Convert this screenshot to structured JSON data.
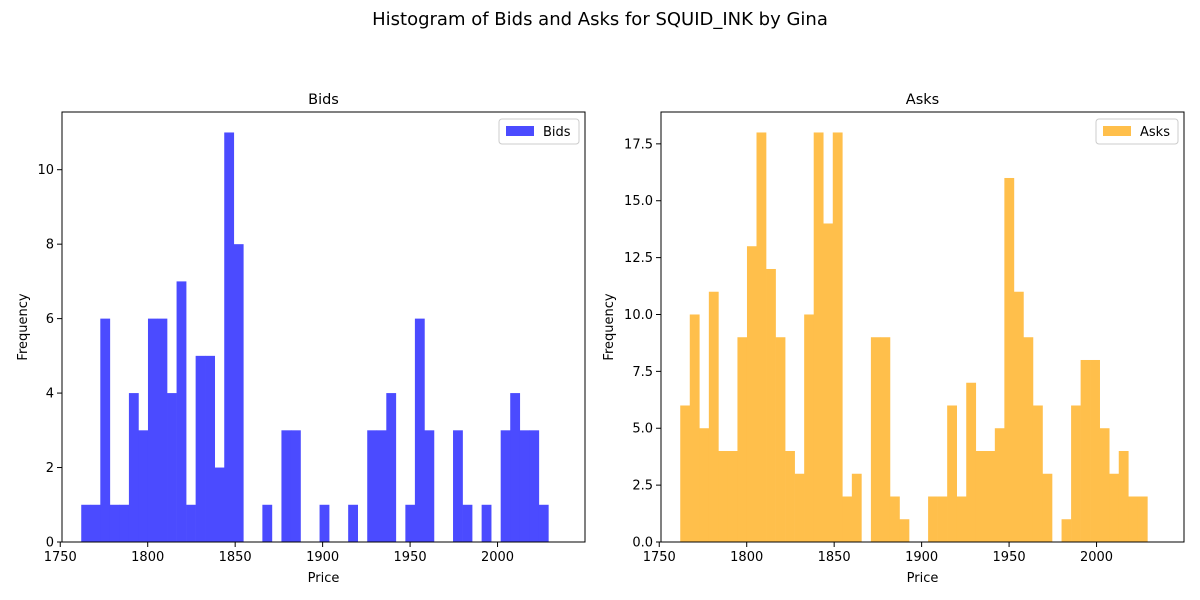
{
  "figure": {
    "suptitle": "Histogram of Bids and Asks for SQUID_INK by Gina"
  },
  "chart_data": [
    {
      "type": "bar",
      "title": "Bids",
      "xlabel": "Price",
      "ylabel": "Frequency",
      "legend": "Bids",
      "legend_position": "top-right",
      "color": "#4b4bff",
      "bin_start": 1762,
      "bin_width": 5.45,
      "xlim": [
        1751,
        2050
      ],
      "ylim": [
        0,
        11.55
      ],
      "xticks": [
        1750,
        1800,
        1850,
        1900,
        1950,
        2000
      ],
      "yticks": [
        0,
        2,
        4,
        6,
        8,
        10
      ],
      "yticks_labels": [
        "0",
        "2",
        "4",
        "6",
        "8",
        "10"
      ],
      "values": [
        1,
        1,
        6,
        1,
        1,
        4,
        3,
        6,
        6,
        4,
        7,
        1,
        5,
        5,
        2,
        11,
        8,
        0,
        0,
        1,
        0,
        3,
        3,
        0,
        0,
        1,
        0,
        0,
        1,
        0,
        3,
        3,
        4,
        0,
        1,
        6,
        3,
        0,
        0,
        3,
        1,
        0,
        1,
        0,
        3,
        4,
        3,
        3,
        1,
        0
      ]
    },
    {
      "type": "bar",
      "title": "Asks",
      "xlabel": "Price",
      "ylabel": "Frequency",
      "legend": "Asks",
      "legend_position": "top-right",
      "color": "#ffbf4b",
      "bin_start": 1762,
      "bin_width": 5.45,
      "xlim": [
        1751,
        2050
      ],
      "ylim": [
        0,
        18.9
      ],
      "xticks": [
        1750,
        1800,
        1850,
        1900,
        1950,
        2000
      ],
      "yticks": [
        0,
        2.5,
        5,
        7.5,
        10,
        12.5,
        15,
        17.5
      ],
      "yticks_labels": [
        "0.0",
        "2.5",
        "5.0",
        "7.5",
        "10.0",
        "12.5",
        "15.0",
        "17.5"
      ],
      "values": [
        6,
        10,
        5,
        11,
        4,
        4,
        9,
        13,
        18,
        12,
        9,
        4,
        3,
        10,
        18,
        14,
        18,
        2,
        3,
        0,
        9,
        9,
        2,
        1,
        0,
        0,
        2,
        2,
        6,
        2,
        7,
        4,
        4,
        5,
        16,
        11,
        9,
        6,
        3,
        0,
        1,
        6,
        8,
        8,
        5,
        3,
        4,
        2,
        2,
        0
      ]
    }
  ]
}
